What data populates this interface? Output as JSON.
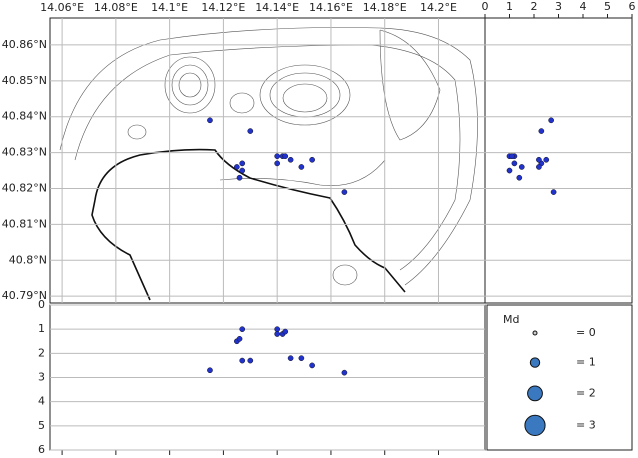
{
  "chart_data": {
    "type": "seismicity",
    "lon": [
      14.115,
      14.13,
      14.127,
      14.125,
      14.126,
      14.14,
      14.142,
      14.143,
      14.14,
      14.145,
      14.149,
      14.153,
      14.165,
      14.127
    ],
    "lat": [
      40.839,
      40.836,
      40.827,
      40.826,
      40.823,
      40.829,
      40.829,
      40.829,
      40.827,
      40.828,
      40.826,
      40.828,
      40.819,
      40.825
    ],
    "depth": [
      2.7,
      2.3,
      2.3,
      1.5,
      1.4,
      1.0,
      1.2,
      1.1,
      1.2,
      2.2,
      2.2,
      2.5,
      2.8,
      1.0
    ],
    "color": "#2233cc",
    "xlim": [
      14.0555,
      14.2173
    ],
    "xticks": [
      {
        "value": 14.06,
        "label": "14.06°E"
      },
      {
        "value": 14.08,
        "label": "14.08°E"
      },
      {
        "value": 14.1,
        "label": "14.1°E"
      },
      {
        "value": 14.12,
        "label": "14.12°E"
      },
      {
        "value": 14.14,
        "label": "14.14°E"
      },
      {
        "value": 14.16,
        "label": "14.16°E"
      },
      {
        "value": 14.18,
        "label": "14.18°E"
      },
      {
        "value": 14.2,
        "label": "14.2°E"
      }
    ],
    "ylim": [
      40.7881,
      40.8675
    ],
    "yticks": [
      {
        "value": 40.79,
        "label": "40.79°N"
      },
      {
        "value": 40.8,
        "label": "40.8°N"
      },
      {
        "value": 40.81,
        "label": "40.81°N"
      },
      {
        "value": 40.82,
        "label": "40.82°N"
      },
      {
        "value": 40.83,
        "label": "40.83°N"
      },
      {
        "value": 40.84,
        "label": "40.84°N"
      },
      {
        "value": 40.85,
        "label": "40.85°N"
      },
      {
        "value": 40.86,
        "label": "40.86°N"
      }
    ],
    "depthlim": [
      0,
      6
    ],
    "depthticks": [
      0,
      1,
      2,
      3,
      4,
      5,
      6
    ],
    "legend": {
      "title": "Md",
      "items": [
        {
          "value": 0,
          "label": "= 0"
        },
        {
          "value": 1,
          "label": "= 1"
        },
        {
          "value": 2,
          "label": "= 2"
        },
        {
          "value": 3,
          "label": "= 3"
        }
      ]
    },
    "grid": true
  }
}
